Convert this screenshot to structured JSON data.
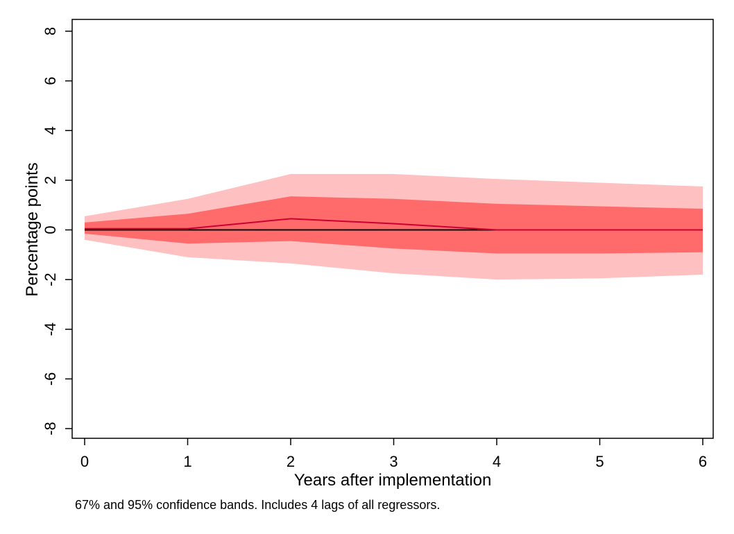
{
  "chart_data": {
    "type": "area",
    "title": "",
    "xlabel": "Years after implementation",
    "ylabel": "Percentage points",
    "note": "67% and 95% confidence bands. Includes 4 lags of all regressors.",
    "xlim": [
      0,
      6
    ],
    "ylim": [
      -8,
      8
    ],
    "xticks": [
      0,
      1,
      2,
      3,
      4,
      5,
      6
    ],
    "yticks": [
      -8,
      -6,
      -4,
      -2,
      0,
      2,
      4,
      6,
      8
    ],
    "xtick_labels": [
      "0",
      "1",
      "2",
      "3",
      "4",
      "5",
      "6"
    ],
    "ytick_labels": [
      "-8",
      "-6",
      "-4",
      "-2",
      "0",
      "2",
      "4",
      "6",
      "8"
    ],
    "grid": false,
    "x": [
      0,
      1,
      2,
      3,
      4,
      5,
      6
    ],
    "series": [
      {
        "name": "95% upper",
        "values": [
          0.55,
          1.25,
          2.25,
          2.25,
          2.05,
          1.9,
          1.75
        ]
      },
      {
        "name": "95% lower",
        "values": [
          -0.4,
          -1.1,
          -1.35,
          -1.75,
          -2.0,
          -1.95,
          -1.8
        ]
      },
      {
        "name": "67% upper",
        "values": [
          0.3,
          0.65,
          1.35,
          1.25,
          1.05,
          0.95,
          0.85
        ]
      },
      {
        "name": "67% lower",
        "values": [
          -0.15,
          -0.55,
          -0.45,
          -0.75,
          -0.95,
          -0.95,
          -0.9
        ]
      },
      {
        "name": "Point estimate",
        "values": [
          0.05,
          0.05,
          0.45,
          0.25,
          0.0,
          0.0,
          0.0
        ]
      },
      {
        "name": "Zero line",
        "values": [
          0,
          0,
          0,
          0,
          0,
          0,
          0
        ]
      }
    ],
    "colors": {
      "band95": "#ffc0c2",
      "band67": "#ff6b6b",
      "estimate": "#cc0033",
      "zero": "#000000",
      "frame": "#000000"
    }
  }
}
